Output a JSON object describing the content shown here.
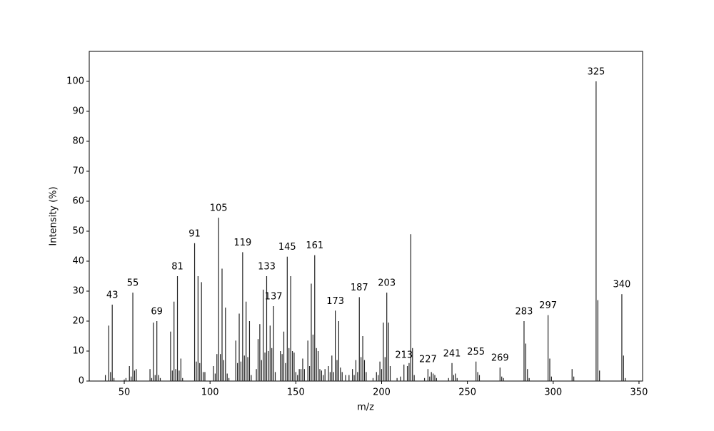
{
  "chart_data": {
    "type": "bar",
    "xlabel": "m/z",
    "ylabel": "Intensity (%)",
    "x": [
      39,
      41,
      42,
      43,
      44,
      50,
      51,
      53,
      54,
      55,
      56,
      57,
      65,
      66,
      67,
      68,
      69,
      70,
      71,
      77,
      78,
      79,
      80,
      81,
      82,
      83,
      84,
      91,
      92,
      93,
      94,
      95,
      96,
      97,
      102,
      103,
      104,
      105,
      106,
      107,
      108,
      109,
      110,
      111,
      115,
      116,
      117,
      118,
      119,
      120,
      121,
      122,
      123,
      124,
      127,
      128,
      129,
      130,
      131,
      132,
      133,
      134,
      135,
      136,
      137,
      138,
      141,
      142,
      143,
      144,
      145,
      146,
      147,
      148,
      149,
      150,
      151,
      152,
      153,
      154,
      155,
      157,
      158,
      159,
      160,
      161,
      162,
      163,
      164,
      165,
      166,
      167,
      169,
      170,
      171,
      172,
      173,
      174,
      175,
      176,
      177,
      179,
      181,
      183,
      184,
      185,
      186,
      187,
      188,
      189,
      190,
      191,
      195,
      197,
      198,
      199,
      200,
      201,
      202,
      203,
      204,
      205,
      209,
      211,
      213,
      215,
      216,
      217,
      218,
      219,
      225,
      227,
      228,
      229,
      230,
      231,
      232,
      239,
      241,
      242,
      243,
      244,
      255,
      256,
      257,
      269,
      270,
      271,
      283,
      284,
      285,
      286,
      297,
      298,
      299,
      311,
      312,
      325,
      326,
      327,
      340,
      341,
      342
    ],
    "values": [
      2,
      18.5,
      3,
      25.5,
      1,
      0.5,
      1,
      5,
      1.5,
      29.5,
      3.5,
      4,
      4,
      1,
      19.5,
      2,
      20,
      2,
      1,
      16.5,
      3.5,
      26.5,
      4,
      35,
      3.5,
      7.5,
      1,
      46,
      6.5,
      35,
      6,
      33,
      3,
      3,
      5,
      2.5,
      9,
      54.5,
      9,
      37.5,
      7,
      24.5,
      2.5,
      1,
      13.5,
      6,
      22.5,
      6.5,
      43,
      8.5,
      26.5,
      8,
      20,
      2,
      4,
      14,
      19,
      7,
      30.5,
      9.5,
      35,
      10,
      18.5,
      11,
      25,
      3,
      10,
      9,
      16.5,
      6,
      41.5,
      11,
      35,
      10,
      9.5,
      3,
      2,
      4,
      4,
      7.5,
      4,
      13.5,
      5,
      32.5,
      15.5,
      42,
      11,
      10,
      4,
      3.5,
      2,
      4,
      5,
      3,
      8.5,
      3,
      23.5,
      7,
      20,
      4.5,
      3,
      2,
      2,
      4,
      2,
      7,
      3,
      28,
      8,
      15,
      7,
      3,
      1,
      3,
      2,
      6.5,
      4,
      19.5,
      8,
      29.5,
      19.5,
      5,
      1,
      1.5,
      5.5,
      5,
      6,
      49,
      11,
      2,
      1,
      4,
      1.5,
      3,
      2.5,
      2,
      1,
      1,
      6,
      2,
      2.5,
      1,
      6.5,
      3,
      2,
      4.5,
      1.5,
      1,
      20,
      12.5,
      4,
      1,
      22,
      7.5,
      1.5,
      4,
      1.5,
      100,
      27,
      3.5,
      29,
      8.5,
      1
    ],
    "color": "#222222",
    "peak_labels": [
      43,
      55,
      69,
      81,
      91,
      105,
      119,
      133,
      137,
      145,
      161,
      173,
      187,
      203,
      213,
      227,
      241,
      255,
      269,
      283,
      297,
      325,
      340
    ],
    "xlim": [
      29.6,
      352.1
    ],
    "ylim": [
      0,
      110
    ],
    "xticks": [
      50,
      100,
      150,
      200,
      250,
      300,
      350
    ],
    "yticks": [
      0,
      10,
      20,
      30,
      40,
      50,
      60,
      70,
      80,
      90,
      100
    ]
  }
}
